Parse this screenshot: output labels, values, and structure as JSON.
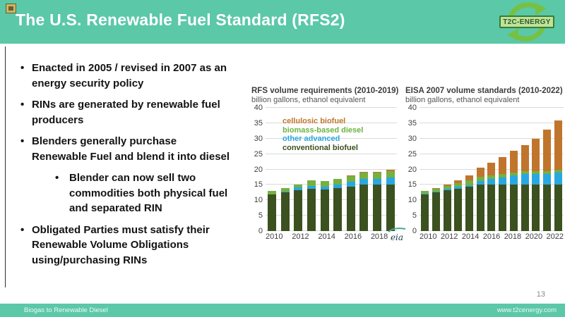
{
  "header": {
    "title": "The U.S. Renewable Fuel Standard (RFS2)",
    "logo_text": "T2C-ENERGY"
  },
  "bullets": [
    {
      "level": 1,
      "lines": [
        "Enacted in 2005 / revised in 2007 as an",
        "energy security policy"
      ]
    },
    {
      "level": 1,
      "lines": [
        "RINs are generated by renewable fuel",
        "producers"
      ]
    },
    {
      "level": 1,
      "lines": [
        "Blenders generally purchase",
        "Renewable Fuel and blend it into diesel"
      ]
    },
    {
      "level": 2,
      "lines": [
        "Blender can now sell two",
        "commodities both physical fuel",
        "and separated RIN"
      ]
    },
    {
      "level": 1,
      "lines": [
        "Obligated Parties must satisfy their",
        "Renewable Volume Obligations",
        "using/purchasing RINs"
      ]
    }
  ],
  "chart_data": [
    {
      "type": "bar",
      "stacked": true,
      "title": "RFS volume requirements (2010-2019)",
      "subtitle": "billion gallons, ethanol equivalent",
      "source": "eia",
      "categories": [
        "2010",
        "2011",
        "2012",
        "2013",
        "2014",
        "2015",
        "2016",
        "2017",
        "2018",
        "2019"
      ],
      "ylim": [
        0,
        40
      ],
      "ytick_step": 5,
      "grid": true,
      "legend_position": "upper-left",
      "legend_items": [
        {
          "label": "cellulosic biofuel",
          "color": "#c0752c"
        },
        {
          "label": "biomass-based diesel",
          "color": "#6cb33f"
        },
        {
          "label": "other advanced",
          "color": "#29a8e0"
        },
        {
          "label": "conventional biofuel",
          "color": "#3b511f"
        }
      ],
      "series": [
        {
          "name": "conventional biofuel",
          "color": "#3b511f",
          "values": [
            11.8,
            12.6,
            13.2,
            13.8,
            13.5,
            14.0,
            14.5,
            15.0,
            15.0,
            15.0
          ]
        },
        {
          "name": "other advanced",
          "color": "#29a8e0",
          "values": [
            0.15,
            0.2,
            1.0,
            0.9,
            0.9,
            1.2,
            1.5,
            1.9,
            1.9,
            2.4
          ]
        },
        {
          "name": "biomass-based diesel",
          "color": "#76b041",
          "values": [
            1.0,
            1.1,
            0.9,
            1.8,
            1.8,
            1.65,
            1.8,
            2.1,
            2.1,
            2.1
          ]
        },
        {
          "name": "cellulosic biofuel",
          "color": "#c0752c",
          "values": [
            0.05,
            0.05,
            0.1,
            0.05,
            0.05,
            0.05,
            0.3,
            0.3,
            0.3,
            0.4
          ]
        }
      ]
    },
    {
      "type": "bar",
      "stacked": true,
      "title": "EISA 2007 volume standards (2010-2022)",
      "subtitle": "billion gallons, ethanol equivalent",
      "source": "",
      "categories": [
        "2010",
        "2011",
        "2012",
        "2013",
        "2014",
        "2015",
        "2016",
        "2017",
        "2018",
        "2019",
        "2020",
        "2021",
        "2022"
      ],
      "ylim": [
        0,
        40
      ],
      "ytick_step": 5,
      "grid": true,
      "legend_position": "none",
      "legend_items": [],
      "series": [
        {
          "name": "conventional biofuel",
          "color": "#3b511f",
          "values": [
            12.0,
            12.6,
            13.2,
            13.8,
            14.4,
            15.0,
            15.0,
            15.0,
            15.0,
            15.0,
            15.0,
            15.0,
            15.0
          ]
        },
        {
          "name": "other advanced",
          "color": "#29a8e0",
          "values": [
            0.2,
            0.2,
            0.5,
            0.5,
            0.5,
            1.2,
            2.0,
            2.4,
            3.0,
            3.5,
            3.5,
            3.5,
            4.0
          ]
        },
        {
          "name": "biomass-based diesel",
          "color": "#76b041",
          "values": [
            0.8,
            1.0,
            1.0,
            1.25,
            1.5,
            1.3,
            1.0,
            1.1,
            1.0,
            1.0,
            1.0,
            1.0,
            1.0
          ]
        },
        {
          "name": "cellulosic biofuel",
          "color": "#c0752c",
          "values": [
            0.1,
            0.25,
            0.5,
            1.0,
            1.75,
            3.0,
            4.25,
            5.5,
            7.0,
            8.5,
            10.5,
            13.5,
            16.0
          ]
        }
      ]
    }
  ],
  "footer": {
    "left": "Biogas to Renewable Diesel",
    "right": "www.t2cenergy.com",
    "page_number": "13"
  },
  "colors": {
    "accent_teal": "#5bc8a8",
    "logo_green": "#76c043",
    "logo_dark_green": "#377d36"
  }
}
